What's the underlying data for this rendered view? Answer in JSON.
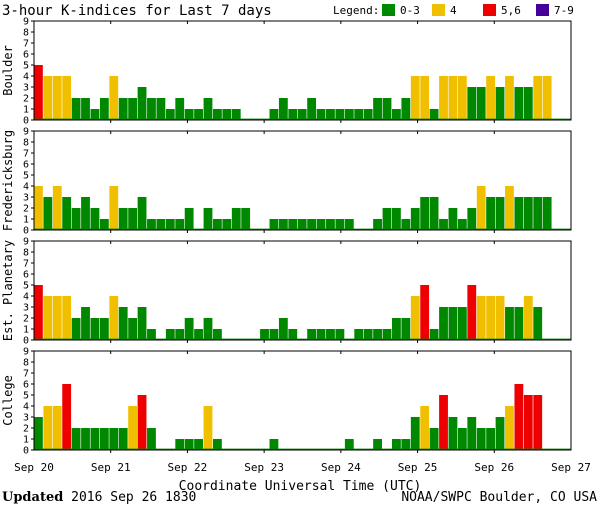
{
  "chart_data": {
    "type": "bar",
    "title": "3-hour K-indices for Last 7 days",
    "legend": {
      "label": "Legend:",
      "placement": "top-right",
      "entries": [
        {
          "label": "0-3",
          "color": "#008800",
          "range": [
            0,
            3
          ]
        },
        {
          "label": "4",
          "color": "#f0c000",
          "range": [
            4,
            4
          ]
        },
        {
          "label": "5,6",
          "color": "#ee0000",
          "range": [
            5,
            6
          ]
        },
        {
          "label": "7-9",
          "color": "#440099",
          "range": [
            7,
            9
          ]
        }
      ]
    },
    "ylim": [
      0,
      9
    ],
    "yticks": [
      "0",
      "1",
      "2",
      "3",
      "4",
      "5",
      "6",
      "7",
      "8",
      "9"
    ],
    "xlabel": "Coordinate Universal Time (UTC)",
    "xticks": [
      "Sep 20",
      "Sep 21",
      "Sep 22",
      "Sep 23",
      "Sep 24",
      "Sep 25",
      "Sep 26",
      "Sep 27"
    ],
    "series": [
      {
        "name": "Boulder",
        "values": [
          5,
          4,
          4,
          4,
          2,
          2,
          1,
          2,
          4,
          2,
          2,
          3,
          2,
          2,
          1,
          2,
          1,
          1,
          2,
          1,
          1,
          1,
          0,
          0,
          0,
          1,
          2,
          1,
          1,
          2,
          1,
          1,
          1,
          1,
          1,
          1,
          2,
          2,
          1,
          2,
          4,
          4,
          1,
          4,
          4,
          4,
          3,
          3,
          4,
          3,
          4,
          3,
          3,
          4,
          4,
          0,
          0
        ]
      },
      {
        "name": "Fredericksburg",
        "values": [
          4,
          3,
          4,
          3,
          2,
          3,
          2,
          1,
          4,
          2,
          2,
          3,
          1,
          1,
          1,
          1,
          2,
          0,
          2,
          1,
          1,
          2,
          2,
          0,
          0,
          1,
          1,
          1,
          1,
          1,
          1,
          1,
          1,
          1,
          0,
          0,
          1,
          2,
          2,
          1,
          2,
          3,
          3,
          1,
          2,
          1,
          2,
          4,
          3,
          3,
          4,
          3,
          3,
          3,
          3,
          0,
          0
        ]
      },
      {
        "name": "Est. Planetary",
        "values": [
          5,
          4,
          4,
          4,
          2,
          3,
          2,
          2,
          4,
          3,
          2,
          3,
          1,
          0,
          1,
          1,
          2,
          1,
          2,
          1,
          0,
          0,
          0,
          0,
          1,
          1,
          2,
          1,
          0,
          1,
          1,
          1,
          1,
          0,
          1,
          1,
          1,
          1,
          2,
          2,
          4,
          5,
          1,
          3,
          3,
          3,
          5,
          4,
          4,
          4,
          3,
          3,
          4,
          3,
          0,
          0,
          0
        ]
      },
      {
        "name": "College",
        "values": [
          3,
          4,
          4,
          6,
          2,
          2,
          2,
          2,
          2,
          2,
          4,
          5,
          2,
          0,
          0,
          1,
          1,
          1,
          4,
          1,
          0,
          0,
          0,
          0,
          0,
          1,
          0,
          0,
          0,
          0,
          0,
          0,
          0,
          1,
          0,
          0,
          1,
          0,
          1,
          1,
          3,
          4,
          2,
          5,
          3,
          2,
          3,
          2,
          2,
          3,
          4,
          6,
          5,
          5,
          0,
          0,
          0
        ]
      }
    ]
  },
  "footer": {
    "updated_label": "Updated",
    "updated_value": "2016 Sep 26 1830",
    "credit": "NOAA/SWPC Boulder, CO USA"
  }
}
